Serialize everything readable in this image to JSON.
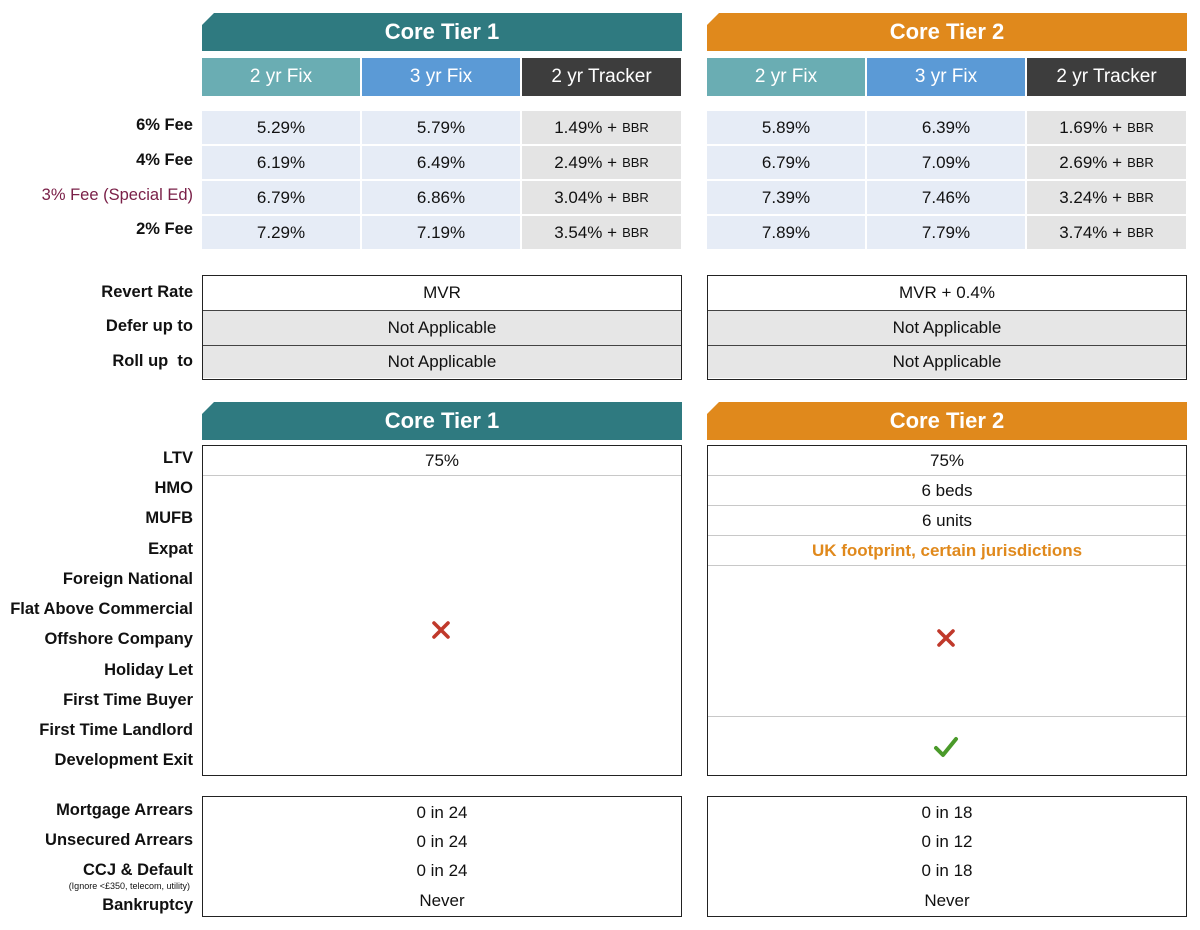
{
  "colors": {
    "tier1": "#2f7a80",
    "tier2": "#e0891c",
    "cross": "#c0392b",
    "tick": "#4a9a2a"
  },
  "rates": {
    "tier1_title": "Core Tier 1",
    "tier2_title": "Core Tier 2",
    "columns": [
      "2 yr Fix",
      "3 yr Fix",
      "2 yr Tracker"
    ],
    "bbr_suffix": "BBR",
    "rows": [
      {
        "label": "6% Fee",
        "tier1": [
          "5.29%",
          "5.79%",
          "1.49% +"
        ],
        "tier2": [
          "5.89%",
          "6.39%",
          "1.69% +"
        ]
      },
      {
        "label": "4% Fee",
        "tier1": [
          "6.19%",
          "6.49%",
          "2.49% +"
        ],
        "tier2": [
          "6.79%",
          "7.09%",
          "2.69% +"
        ]
      },
      {
        "label": "3% Fee (Special Ed)",
        "tier1": [
          "6.79%",
          "6.86%",
          "3.04% +"
        ],
        "tier2": [
          "7.39%",
          "7.46%",
          "3.24% +"
        ]
      },
      {
        "label": "2% Fee",
        "tier1": [
          "7.29%",
          "7.19%",
          "3.54% +"
        ],
        "tier2": [
          "7.89%",
          "7.79%",
          "3.74% +"
        ]
      }
    ]
  },
  "terms": {
    "rows": [
      {
        "label": "Revert Rate",
        "tier1": "MVR",
        "tier2": "MVR + 0.4%"
      },
      {
        "label": "Defer up to",
        "tier1": "Not Applicable",
        "tier2": "Not Applicable"
      },
      {
        "label": "Roll up  to",
        "tier1": "Not Applicable",
        "tier2": "Not Applicable"
      }
    ]
  },
  "criteria": {
    "tier1_title": "Core Tier 1",
    "tier2_title": "Core Tier 2",
    "labels": [
      "LTV",
      "HMO",
      "MUFB",
      "Expat",
      "Foreign National",
      "Flat Above Commercial",
      "Offshore Company",
      "Holiday Let",
      "First Time Buyer",
      "First Time Landlord",
      "Development Exit"
    ],
    "tier1_ltv": "75%",
    "tier1_other": "not-allowed-cross",
    "tier2_ltv": "75%",
    "tier2_hmo": "6 beds",
    "tier2_mufb": "6 units",
    "tier2_expat": "UK footprint, certain jurisdictions",
    "tier2_block": "not-allowed-cross",
    "tier2_development_exit": "allowed-check"
  },
  "credit": {
    "labels": [
      "Mortgage Arrears",
      "Unsecured Arrears",
      "CCJ & Default",
      "Bankruptcy"
    ],
    "ccj_note": "(Ignore <£350, telecom, utility)",
    "tier1": [
      "0 in 24",
      "0 in 24",
      "0 in 24",
      "Never"
    ],
    "tier2": [
      "0 in 18",
      "0 in 12",
      "0 in 18",
      "Never"
    ]
  }
}
